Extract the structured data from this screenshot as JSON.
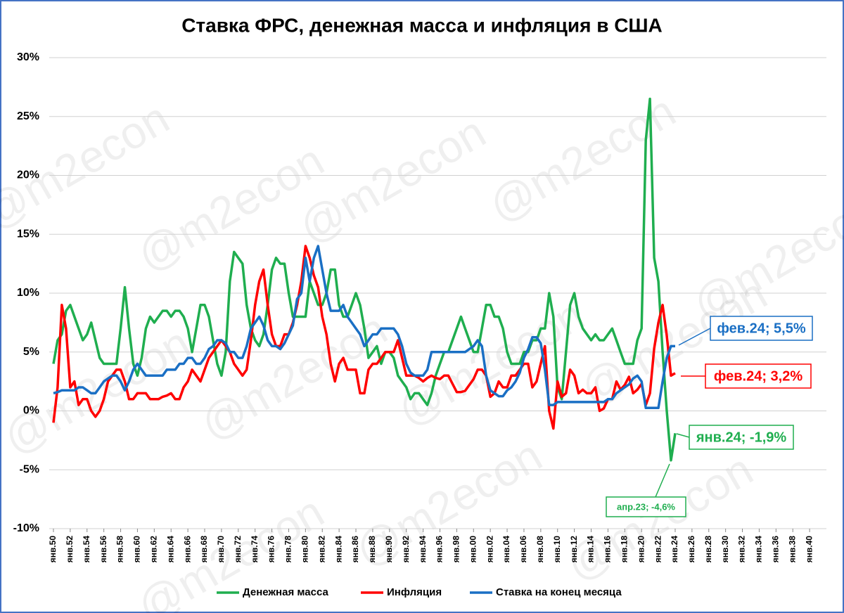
{
  "chart_data": {
    "type": "line",
    "title": "Ставка ФРС, денежная масса и инфляция в США",
    "watermark": "@m2econ",
    "x": [
      1950,
      1950.5,
      1951,
      1951.5,
      1952,
      1952.5,
      1953,
      1953.5,
      1954,
      1954.5,
      1955,
      1955.5,
      1956,
      1956.5,
      1957,
      1957.5,
      1958,
      1958.5,
      1959,
      1959.5,
      1960,
      1960.5,
      1961,
      1961.5,
      1962,
      1962.5,
      1963,
      1963.5,
      1964,
      1964.5,
      1965,
      1965.5,
      1966,
      1966.5,
      1967,
      1967.5,
      1968,
      1968.5,
      1969,
      1969.5,
      1970,
      1970.5,
      1971,
      1971.5,
      1972,
      1972.5,
      1973,
      1973.5,
      1974,
      1974.5,
      1975,
      1975.5,
      1976,
      1976.5,
      1977,
      1977.5,
      1978,
      1978.5,
      1979,
      1979.5,
      1980,
      1980.5,
      1981,
      1981.5,
      1982,
      1982.5,
      1983,
      1983.5,
      1984,
      1984.5,
      1985,
      1985.5,
      1986,
      1986.5,
      1987,
      1987.5,
      1988,
      1988.5,
      1989,
      1989.5,
      1990,
      1990.5,
      1991,
      1991.5,
      1992,
      1992.5,
      1993,
      1993.5,
      1994,
      1994.5,
      1995,
      1995.5,
      1996,
      1996.5,
      1997,
      1997.5,
      1998,
      1998.5,
      1999,
      1999.5,
      2000,
      2000.5,
      2001,
      2001.5,
      2002,
      2002.5,
      2003,
      2003.5,
      2004,
      2004.5,
      2005,
      2005.5,
      2006,
      2006.5,
      2007,
      2007.5,
      2008,
      2008.5,
      2009,
      2009.5,
      2010,
      2010.5,
      2011,
      2011.5,
      2012,
      2012.5,
      2013,
      2013.5,
      2014,
      2014.5,
      2015,
      2015.5,
      2016,
      2016.5,
      2017,
      2017.5,
      2018,
      2018.5,
      2019,
      2019.5,
      2020,
      2020.5,
      2021,
      2021.5,
      2022,
      2022.5,
      2023,
      2023.5,
      2024
    ],
    "series": [
      {
        "name": "Денежная масса",
        "color": "#1fae4f",
        "values": [
          4,
          6,
          6.5,
          8.5,
          9,
          8,
          7,
          6,
          6.5,
          7.5,
          6,
          4.5,
          4,
          4,
          4,
          4,
          7,
          10.5,
          7,
          4,
          3,
          4.5,
          7,
          8,
          7.5,
          8,
          8.5,
          8.5,
          8,
          8.5,
          8.5,
          8,
          7,
          5,
          7,
          9,
          9,
          8,
          6,
          4,
          3,
          5,
          11,
          13.5,
          13,
          12.5,
          9,
          7,
          6,
          5.5,
          6.5,
          9,
          12,
          13,
          12.5,
          12.5,
          10,
          8,
          8,
          8,
          8,
          11,
          10,
          9,
          9,
          10,
          12,
          12,
          9,
          8,
          8,
          9,
          10,
          9,
          7,
          4.5,
          5,
          5.5,
          4,
          5,
          5,
          4.5,
          3,
          2.5,
          2,
          1,
          1.5,
          1.5,
          1,
          0.5,
          1.5,
          3,
          4,
          5,
          5,
          6,
          7,
          8,
          7,
          6,
          5,
          5,
          7,
          9,
          9,
          8,
          8,
          7,
          5,
          4,
          4,
          4,
          5,
          5,
          6,
          6,
          7,
          7,
          10,
          8,
          2,
          1,
          5,
          9,
          10,
          8,
          7,
          6.5,
          6,
          6.5,
          6,
          6,
          6.5,
          7,
          6,
          5,
          4,
          4,
          4,
          6,
          7,
          23,
          26.5,
          13,
          11,
          5,
          0,
          -4.2,
          -1.9
        ]
      },
      {
        "name": "Инфляция",
        "color": "#ff0000",
        "values": [
          -1,
          2,
          9,
          7,
          2,
          2.5,
          0.5,
          1,
          1,
          0,
          -0.5,
          0,
          1,
          2.5,
          3,
          3.5,
          3.5,
          2.5,
          1,
          1,
          1.5,
          1.5,
          1.5,
          1,
          1,
          1,
          1.2,
          1.3,
          1.5,
          1,
          1,
          2,
          2.5,
          3.5,
          3,
          2.5,
          3.5,
          4.5,
          5,
          5.5,
          6,
          5.5,
          5,
          4,
          3.5,
          3,
          3.5,
          6,
          9,
          11,
          12,
          9,
          6.5,
          5.5,
          5.5,
          6.5,
          6.5,
          7.5,
          9,
          11,
          14,
          13,
          11.5,
          10.5,
          8,
          6.5,
          4,
          2.5,
          4,
          4.5,
          3.5,
          3.5,
          3.5,
          1.5,
          1.5,
          3.5,
          4,
          4,
          4.5,
          5,
          5,
          5,
          6,
          4.5,
          3,
          3,
          3,
          2.8,
          2.5,
          2.8,
          3,
          2.8,
          2.7,
          3,
          3,
          2.3,
          1.6,
          1.6,
          1.7,
          2.2,
          2.7,
          3.5,
          3.5,
          3,
          1.2,
          1.5,
          2.5,
          2,
          2,
          3,
          3,
          3.5,
          4,
          4,
          2,
          2.5,
          4,
          5.5,
          0,
          -1.5,
          2.5,
          1.2,
          1.5,
          3.5,
          3,
          1.5,
          1.8,
          1.5,
          1.5,
          2,
          0,
          0.2,
          1,
          1,
          2.5,
          1.8,
          2.2,
          2.9,
          1.5,
          1.8,
          2.3,
          0.5,
          1.5,
          5.3,
          7.5,
          9,
          6.4,
          3,
          3.2
        ]
      },
      {
        "name": "Ставка на конец месяца",
        "color": "#1a6fc4",
        "values": [
          1.5,
          1.6,
          1.75,
          1.75,
          1.75,
          1.75,
          2,
          2,
          1.75,
          1.5,
          1.5,
          2,
          2.5,
          2.75,
          3,
          3,
          2.5,
          1.75,
          2.5,
          3.5,
          4,
          3.5,
          3,
          3,
          3,
          3,
          3,
          3.5,
          3.5,
          3.5,
          4,
          4,
          4.5,
          4.5,
          4,
          4,
          4.5,
          5.25,
          5.5,
          6,
          6,
          5.75,
          5,
          5,
          4.5,
          4.5,
          5.5,
          7,
          7.5,
          8,
          7.25,
          6,
          5.5,
          5.5,
          5.25,
          5.75,
          6.5,
          7.25,
          9.5,
          10,
          13,
          11,
          13,
          14,
          12,
          10,
          8.5,
          8.5,
          8.5,
          9,
          8,
          7.5,
          7,
          6.5,
          5.5,
          6,
          6.5,
          6.5,
          7,
          7,
          7,
          7,
          6.5,
          5.5,
          4,
          3.25,
          3,
          3,
          3,
          3.5,
          5,
          5,
          5,
          5,
          5,
          5,
          5,
          5,
          5,
          5.25,
          5.5,
          6,
          5.5,
          3,
          1.75,
          1.5,
          1.25,
          1.25,
          1.75,
          2,
          2.5,
          3.25,
          4.5,
          5.25,
          6.25,
          6.25,
          5.75,
          3.5,
          0.5,
          0.5,
          0.75,
          0.75,
          0.75,
          0.75,
          0.75,
          0.75,
          0.75,
          0.75,
          0.75,
          0.75,
          0.75,
          0.75,
          1,
          1,
          1.5,
          1.75,
          2,
          2.25,
          2.75,
          3,
          2.5,
          0.25,
          0.25,
          0.25,
          0.25,
          2.5,
          4.5,
          5.5,
          5.5
        ]
      }
    ],
    "annotations": [
      "фев.24; 5,5%",
      "фев.24; 3,2%",
      "янв.24; -1,9%",
      "апр.23; -4,6%"
    ],
    "xlim": [
      1949.5,
      2042
    ],
    "xticks": [
      {
        "value": 1950,
        "label": "янв.50"
      },
      {
        "value": 1952,
        "label": "янв.52"
      },
      {
        "value": 1954,
        "label": "янв.54"
      },
      {
        "value": 1956,
        "label": "янв.56"
      },
      {
        "value": 1958,
        "label": "янв.58"
      },
      {
        "value": 1960,
        "label": "янв.60"
      },
      {
        "value": 1962,
        "label": "янв.62"
      },
      {
        "value": 1964,
        "label": "янв.64"
      },
      {
        "value": 1966,
        "label": "янв.66"
      },
      {
        "value": 1968,
        "label": "янв.68"
      },
      {
        "value": 1970,
        "label": "янв.70"
      },
      {
        "value": 1972,
        "label": "янв.72"
      },
      {
        "value": 1974,
        "label": "янв.74"
      },
      {
        "value": 1976,
        "label": "янв.76"
      },
      {
        "value": 1978,
        "label": "янв.78"
      },
      {
        "value": 1980,
        "label": "янв.80"
      },
      {
        "value": 1982,
        "label": "янв.82"
      },
      {
        "value": 1984,
        "label": "янв.84"
      },
      {
        "value": 1986,
        "label": "янв.86"
      },
      {
        "value": 1988,
        "label": "янв.88"
      },
      {
        "value": 1990,
        "label": "янв.90"
      },
      {
        "value": 1992,
        "label": "янв.92"
      },
      {
        "value": 1994,
        "label": "янв.94"
      },
      {
        "value": 1996,
        "label": "янв.96"
      },
      {
        "value": 1998,
        "label": "янв.98"
      },
      {
        "value": 2000,
        "label": "янв.00"
      },
      {
        "value": 2002,
        "label": "янв.02"
      },
      {
        "value": 2004,
        "label": "янв.04"
      },
      {
        "value": 2006,
        "label": "янв.06"
      },
      {
        "value": 2008,
        "label": "янв.08"
      },
      {
        "value": 2010,
        "label": "янв.10"
      },
      {
        "value": 2012,
        "label": "янв.12"
      },
      {
        "value": 2014,
        "label": "янв.14"
      },
      {
        "value": 2016,
        "label": "янв.16"
      },
      {
        "value": 2018,
        "label": "янв.18"
      },
      {
        "value": 2020,
        "label": "янв.20"
      },
      {
        "value": 2022,
        "label": "янв.22"
      },
      {
        "value": 2024,
        "label": "янв.24"
      },
      {
        "value": 2026,
        "label": "янв.26"
      },
      {
        "value": 2028,
        "label": "янв.28"
      },
      {
        "value": 2030,
        "label": "янв.30"
      },
      {
        "value": 2032,
        "label": "янв.32"
      },
      {
        "value": 2034,
        "label": "янв.34"
      },
      {
        "value": 2036,
        "label": "янв.36"
      },
      {
        "value": 2038,
        "label": "янв.38"
      },
      {
        "value": 2040,
        "label": "янв.40"
      }
    ],
    "ylim": [
      -10,
      30
    ],
    "yticks": [
      {
        "value": -10,
        "label": "-10%"
      },
      {
        "value": -5,
        "label": "-5%"
      },
      {
        "value": 0,
        "label": "0%"
      },
      {
        "value": 5,
        "label": "5%"
      },
      {
        "value": 10,
        "label": "10%"
      },
      {
        "value": 15,
        "label": "15%"
      },
      {
        "value": 20,
        "label": "20%"
      },
      {
        "value": 25,
        "label": "25%"
      },
      {
        "value": 30,
        "label": "30%"
      }
    ],
    "grid": true
  }
}
